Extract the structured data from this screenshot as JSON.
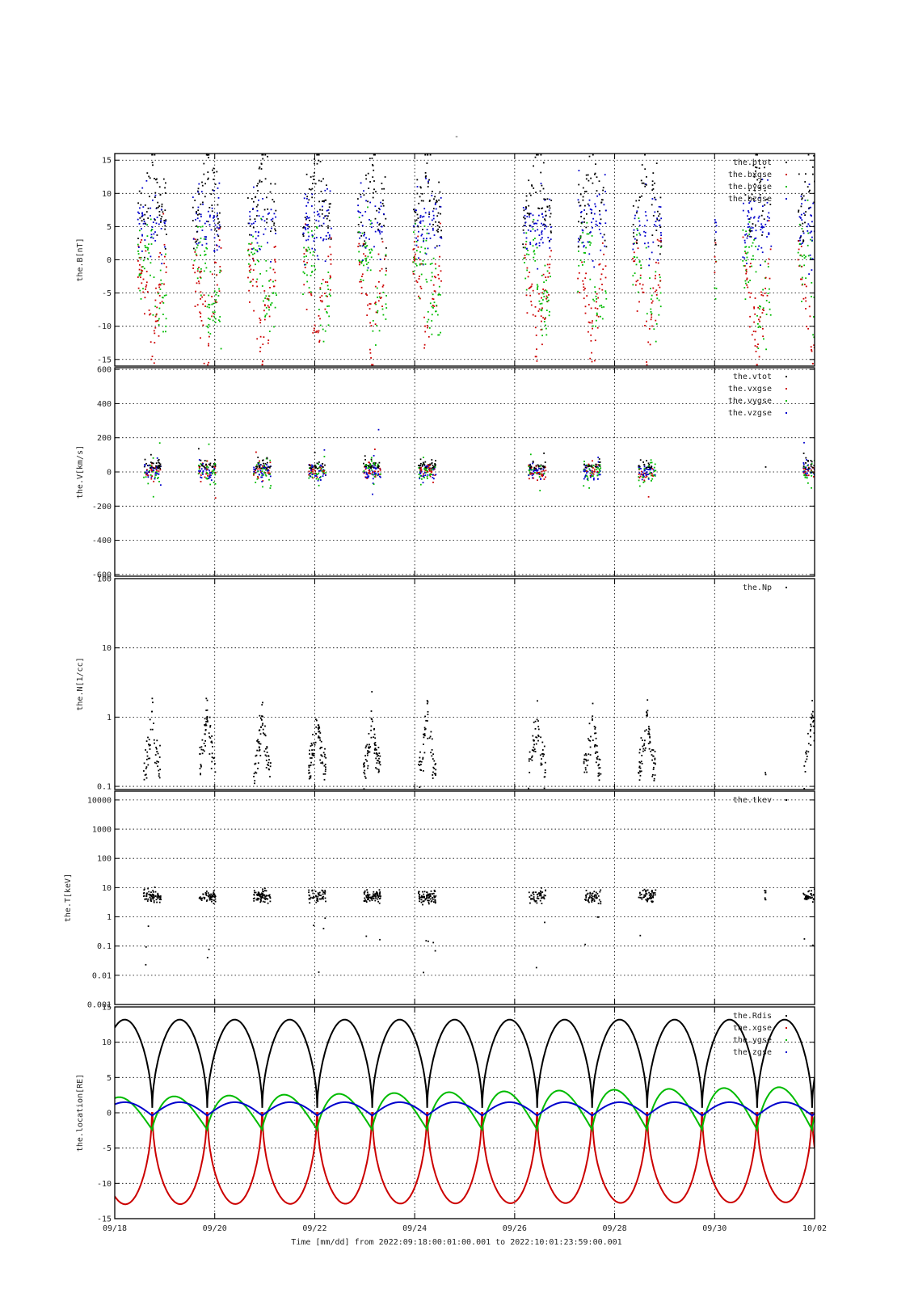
{
  "figure": {
    "title": "-",
    "xlabel": "Time [mm/dd]  from 2022:09:18:00:01:00.001  to  2022:10:01:23:59:00.001"
  },
  "chart_data": [
    {
      "type": "scatter",
      "ylabel": "the.B[nT]",
      "yscale": "linear",
      "ylim": [
        -16,
        16
      ],
      "yticks": [
        -15,
        -10,
        -5,
        0,
        5,
        10,
        15
      ],
      "ytick_labels": [
        "-15",
        "-10",
        "-5",
        "0",
        "5",
        "10",
        "15"
      ],
      "xlim": [
        0,
        14
      ],
      "grid": true,
      "legend_position": "top-right",
      "series": [
        {
          "name": "the.btot",
          "color": "#000000"
        },
        {
          "name": "the.bxgse",
          "color": "#cc0000"
        },
        {
          "name": "the.bygse",
          "color": "#00bb00"
        },
        {
          "name": "the.bzgse",
          "color": "#0000cc"
        }
      ]
    },
    {
      "type": "scatter",
      "ylabel": "the.V[km/s]",
      "yscale": "linear",
      "ylim": [
        -610,
        610
      ],
      "yticks": [
        -600,
        -400,
        -200,
        0,
        200,
        400,
        600
      ],
      "ytick_labels": [
        "-600",
        "-400",
        "-200",
        "0",
        "200",
        "400",
        "600"
      ],
      "xlim": [
        0,
        14
      ],
      "grid": true,
      "legend_position": "top-right",
      "series": [
        {
          "name": "the.vtot",
          "color": "#000000"
        },
        {
          "name": "the.vxgse",
          "color": "#cc0000"
        },
        {
          "name": "the.vygse",
          "color": "#00bb00"
        },
        {
          "name": "the.vzgse",
          "color": "#0000cc"
        }
      ]
    },
    {
      "type": "scatter",
      "ylabel": "the.N[1/cc]",
      "yscale": "log",
      "ylim": [
        0.09,
        100
      ],
      "yticks": [
        0.1,
        1,
        10,
        100
      ],
      "ytick_labels": [
        "0.1",
        "1",
        "10",
        "100"
      ],
      "xlim": [
        0,
        14
      ],
      "grid": true,
      "legend_position": "top-right",
      "series": [
        {
          "name": "the.Np",
          "color": "#000000"
        }
      ]
    },
    {
      "type": "scatter",
      "ylabel": "the.T[keV]",
      "yscale": "log",
      "ylim": [
        0.001,
        20000
      ],
      "yticks": [
        0.001,
        0.01,
        0.1,
        1,
        10,
        100,
        1000,
        10000
      ],
      "ytick_labels": [
        "0.001",
        "0.01",
        "0.1",
        "1",
        "10",
        "100",
        "1000",
        "10000"
      ],
      "xlim": [
        0,
        14
      ],
      "grid": true,
      "legend_position": "top-right",
      "series": [
        {
          "name": "the.tkev",
          "color": "#000000"
        }
      ]
    },
    {
      "type": "line",
      "ylabel": "the.location[RE]",
      "yscale": "linear",
      "ylim": [
        -15,
        15
      ],
      "yticks": [
        -15,
        -10,
        -5,
        0,
        5,
        10,
        15
      ],
      "ytick_labels": [
        "-15",
        "-10",
        "-5",
        "0",
        "5",
        "10",
        "15"
      ],
      "xlim": [
        0,
        14
      ],
      "grid": true,
      "legend_position": "top-right",
      "series": [
        {
          "name": "the.Rdis",
          "color": "#000000"
        },
        {
          "name": "the.xgse",
          "color": "#cc0000"
        },
        {
          "name": "the.ygse",
          "color": "#00bb00"
        },
        {
          "name": "the.zgse",
          "color": "#0000cc"
        }
      ]
    }
  ],
  "x_axis": {
    "ticks": [
      0,
      2,
      4,
      6,
      8,
      10,
      12,
      14
    ],
    "tick_labels": [
      "09/18",
      "09/20",
      "09/22",
      "09/24",
      "09/26",
      "09/28",
      "09/30",
      "10/02"
    ]
  },
  "orbit": {
    "period_days": 1.1,
    "first_perigee_day": 0.75,
    "apogee_re": 13.2,
    "perigee_re": 0.7
  },
  "data_gaps_days": [
    [
      6.7,
      8.0
    ],
    [
      11.3,
      12.0
    ]
  ]
}
